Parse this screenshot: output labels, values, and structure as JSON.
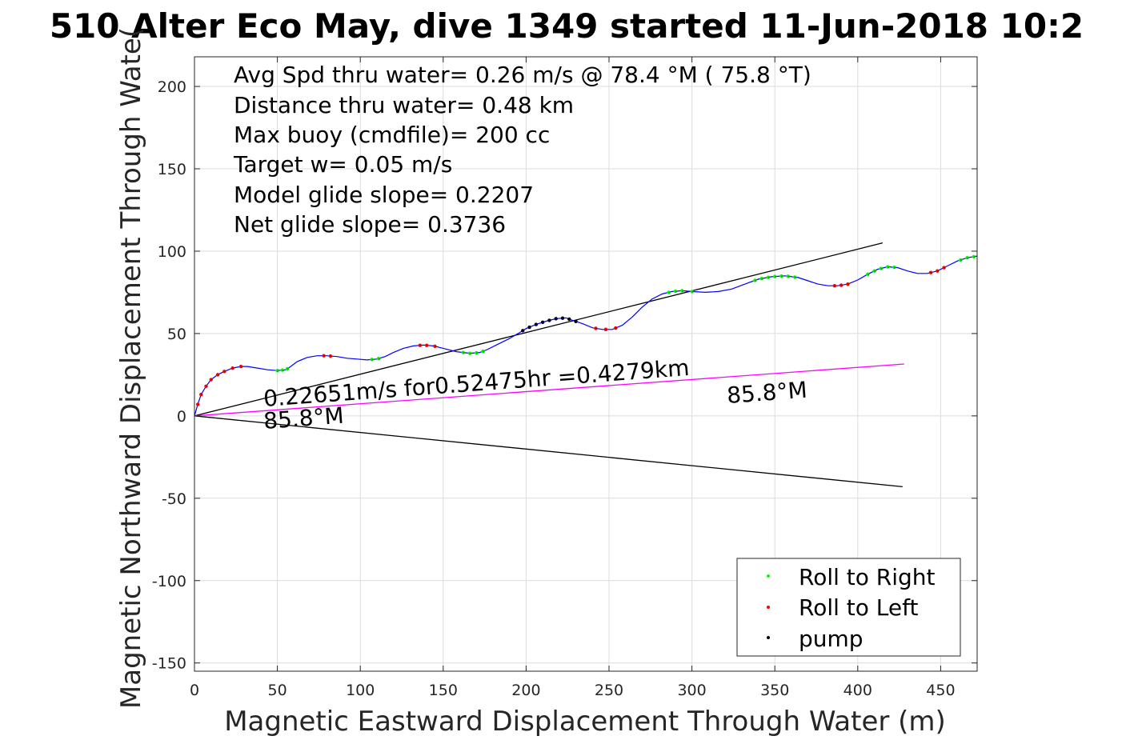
{
  "chart_data": {
    "type": "line",
    "title": "510 Alter Eco May, dive 1349 started 11-Jun-2018 10:2",
    "xlabel": "Magnetic Eastward Displacement Through Water (m)",
    "ylabel": "Magnetic Northward Displacement Through Wate(",
    "xlim": [
      0,
      472
    ],
    "ylim": [
      -155,
      218
    ],
    "xticks": [
      "0",
      "50",
      "100",
      "150",
      "200",
      "250",
      "300",
      "350",
      "400",
      "450"
    ],
    "xtick_values": [
      0,
      50,
      100,
      150,
      200,
      250,
      300,
      350,
      400,
      450
    ],
    "yticks": [
      "-150",
      "-100",
      "-50",
      "0",
      "50",
      "100",
      "150",
      "200"
    ],
    "ytick_values": [
      -150,
      -100,
      -50,
      0,
      50,
      100,
      150,
      200
    ],
    "grid": true,
    "annotations": [
      "Avg Spd thru water=  0.26 m/s @  78.4 °M ( 75.8 °T)",
      "Distance thru water=  0.48 km",
      "Max buoy (cmdfile)= 200 cc",
      "Target w= 0.05 m/s",
      "Model glide slope= 0.2207",
      "Net glide slope= 0.3736"
    ],
    "current_label": "0.22651m/s for0.52475hr =0.4279km",
    "heading_label_start": "85.8°M",
    "heading_label_end": "85.8°M",
    "legend_position": "bottom-right",
    "legend": [
      {
        "label": "Roll to Right",
        "color": "#00ff00"
      },
      {
        "label": "Roll to Left",
        "color": "#ff0000"
      },
      {
        "label": "pump",
        "color": "#000000"
      }
    ],
    "track": {
      "name": "track",
      "color": "#0000ff",
      "x": [
        0,
        2,
        4,
        7,
        10,
        14,
        18,
        23,
        28,
        32,
        38,
        44,
        50,
        55,
        58,
        62,
        68,
        74,
        80,
        86,
        92,
        98,
        104,
        110,
        115,
        120,
        126,
        132,
        138,
        144,
        150,
        158,
        166,
        172,
        176,
        182,
        190,
        196,
        200,
        206,
        212,
        218,
        224,
        228,
        234,
        240,
        246,
        252,
        258,
        264,
        270,
        276,
        282,
        288,
        294,
        300,
        308,
        316,
        324,
        332,
        340,
        348,
        356,
        364,
        370,
        376,
        382,
        388,
        394,
        400,
        406,
        412,
        418,
        424,
        430,
        436,
        442,
        448,
        454,
        460,
        466,
        472
      ],
      "y": [
        0,
        7,
        13,
        18,
        22,
        25,
        27,
        29,
        30,
        30,
        29,
        28,
        27.5,
        28,
        30,
        33,
        35.5,
        36.5,
        36.5,
        36,
        35,
        34.5,
        34,
        34.5,
        36,
        38.5,
        41,
        42.5,
        43,
        42.5,
        41,
        39,
        38,
        38.5,
        40,
        43,
        47,
        50.5,
        53,
        55.5,
        57.5,
        59,
        59.5,
        58,
        56,
        53.5,
        52.5,
        52.5,
        55,
        60,
        66,
        71,
        74,
        75.5,
        76,
        75.5,
        75,
        75.5,
        77,
        80,
        83,
        84.5,
        85,
        84,
        82,
        80,
        79,
        79,
        80,
        82.5,
        86,
        89,
        90.5,
        90,
        88,
        86.5,
        86.5,
        88,
        91,
        94,
        96,
        97
      ]
    },
    "markers": [
      {
        "type": "right",
        "x": [
          50,
          53,
          56,
          107,
          111,
          162,
          166,
          170,
          174,
          286,
          290,
          294,
          300,
          338,
          342,
          346,
          350,
          354,
          358,
          362,
          406,
          410,
          414,
          418,
          422,
          462,
          466,
          470
        ]
      },
      {
        "type": "left",
        "x": [
          2,
          4,
          7,
          10,
          14,
          18,
          23,
          28,
          78,
          82,
          136,
          140,
          145,
          242,
          248,
          254,
          386,
          390,
          394,
          444,
          448,
          452
        ]
      },
      {
        "type": "pump",
        "x": [
          198,
          202,
          206,
          210,
          214,
          218,
          222,
          226,
          230
        ]
      }
    ],
    "reference_lines": [
      {
        "name": "glide-upper",
        "color": "#000000",
        "x": [
          0,
          415
        ],
        "y": [
          0,
          105
        ]
      },
      {
        "name": "glide-lower",
        "color": "#000000",
        "x": [
          0,
          427
        ],
        "y": [
          0,
          -43
        ]
      },
      {
        "name": "current",
        "color": "#ff00ff",
        "x": [
          0,
          428
        ],
        "y": [
          0,
          31.5
        ]
      }
    ]
  }
}
